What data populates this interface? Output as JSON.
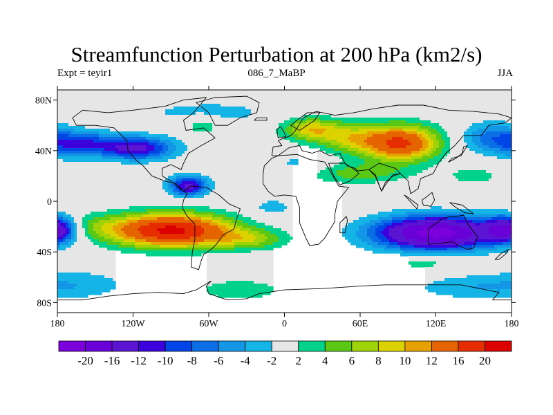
{
  "title": "Streamfunction Perturbation at 200 hPa (km2/s)",
  "subtitle_left": "Expt = teyir1",
  "subtitle_center": "086_7_MaBP",
  "subtitle_right": "JJA",
  "latitude_ticks": [
    {
      "label": "80N",
      "lat": 80
    },
    {
      "label": "40N",
      "lat": 40
    },
    {
      "label": "0",
      "lat": 0
    },
    {
      "label": "40S",
      "lat": -40
    },
    {
      "label": "80S",
      "lat": -80
    }
  ],
  "longitude_ticks": [
    {
      "label": "180",
      "lon": -180
    },
    {
      "label": "120W",
      "lon": -120
    },
    {
      "label": "60W",
      "lon": -60
    },
    {
      "label": "0",
      "lon": 0
    },
    {
      "label": "60E",
      "lon": 60
    },
    {
      "label": "120E",
      "lon": 120
    },
    {
      "label": "180",
      "lon": 180
    }
  ],
  "colorbar": {
    "colors": [
      "#7b00dc",
      "#6a00d8",
      "#5a14d2",
      "#3c00dc",
      "#0046e6",
      "#0a6ee6",
      "#1496e6",
      "#14b4e6",
      "#e6e6e6",
      "#00d28c",
      "#5ac814",
      "#a0d20a",
      "#dcd200",
      "#e6a000",
      "#e66400",
      "#e62d00",
      "#dc0000"
    ],
    "labels": [
      "-20",
      "-16",
      "-12",
      "-10",
      "-8",
      "-6",
      "-4",
      "-2",
      "2",
      "4",
      "6",
      "8",
      "10",
      "12",
      "16",
      "20"
    ]
  },
  "field": {
    "background_value": 0,
    "anomalies": [
      {
        "lon": -90,
        "lat": -23,
        "amp": 21,
        "rlon": 48,
        "rlat": 13
      },
      {
        "lon": -28,
        "lat": -30,
        "amp": 6,
        "rlon": 30,
        "rlat": 8
      },
      {
        "lon": -160,
        "lat": -20,
        "amp": 4,
        "rlon": 30,
        "rlat": 10
      },
      {
        "lon": 120,
        "lat": -25,
        "amp": -22,
        "rlon": 48,
        "rlat": 13
      },
      {
        "lon": 178,
        "lat": -22,
        "amp": -16,
        "rlon": 18,
        "rlat": 10
      },
      {
        "lon": -118,
        "lat": 42,
        "amp": -13,
        "rlon": 30,
        "rlat": 9
      },
      {
        "lon": -170,
        "lat": 44,
        "amp": -6,
        "rlon": 20,
        "rlat": 10
      },
      {
        "lon": -153,
        "lat": 47,
        "amp": -5,
        "rlon": 22,
        "rlat": 9
      },
      {
        "lon": -76,
        "lat": 12,
        "amp": -13,
        "rlon": 15,
        "rlat": 8
      },
      {
        "lon": -60,
        "lat": 70,
        "amp": -3,
        "rlon": 55,
        "rlat": 10
      },
      {
        "lon": 92,
        "lat": 46,
        "amp": 17,
        "rlon": 30,
        "rlat": 14
      },
      {
        "lon": 20,
        "lat": 57,
        "amp": 9,
        "rlon": 22,
        "rlat": 9
      },
      {
        "lon": 50,
        "lat": 50,
        "amp": 7,
        "rlon": 25,
        "rlat": 12
      },
      {
        "lon": 58,
        "lat": 22,
        "amp": 5,
        "rlon": 40,
        "rlat": 8
      },
      {
        "lon": 165,
        "lat": 50,
        "amp": -7,
        "rlon": 25,
        "rlat": 12
      },
      {
        "lon": -35,
        "lat": -70,
        "amp": 4,
        "rlon": 32,
        "rlat": 8
      },
      {
        "lon": -160,
        "lat": -65,
        "amp": -2.6,
        "rlon": 40,
        "rlat": 12
      },
      {
        "lon": 150,
        "lat": -68,
        "amp": -3.5,
        "rlon": 50,
        "rlat": 10
      },
      {
        "lon": 110,
        "lat": -48,
        "amp": 3.5,
        "rlon": 25,
        "rlat": 6
      },
      {
        "lon": -65,
        "lat": 60,
        "amp": 4,
        "rlon": 15,
        "rlat": 8
      },
      {
        "lon": 10,
        "lat": 30,
        "amp": -2.5,
        "rlon": 25,
        "rlat": 8
      },
      {
        "lon": -10,
        "lat": -5,
        "amp": -3,
        "rlon": 18,
        "rlat": 8
      },
      {
        "lon": 150,
        "lat": 20,
        "amp": 3,
        "rlon": 22,
        "rlat": 8
      }
    ]
  },
  "continents": [
    {
      "name": "north-america",
      "points": [
        [
          -168,
          66
        ],
        [
          -160,
          72
        ],
        [
          -140,
          70
        ],
        [
          -120,
          72
        ],
        [
          -95,
          75
        ],
        [
          -80,
          80
        ],
        [
          -62,
          82
        ],
        [
          -72,
          70
        ],
        [
          -80,
          64
        ],
        [
          -78,
          56
        ],
        [
          -64,
          58
        ],
        [
          -55,
          50
        ],
        [
          -66,
          44
        ],
        [
          -76,
          38
        ],
        [
          -80,
          30
        ],
        [
          -82,
          25
        ],
        [
          -90,
          29
        ],
        [
          -97,
          26
        ],
        [
          -97,
          20
        ],
        [
          -90,
          16
        ],
        [
          -83,
          10
        ],
        [
          -80,
          8
        ],
        [
          -86,
          14
        ],
        [
          -95,
          16
        ],
        [
          -105,
          20
        ],
        [
          -112,
          28
        ],
        [
          -117,
          32
        ],
        [
          -124,
          40
        ],
        [
          -125,
          48
        ],
        [
          -135,
          58
        ],
        [
          -150,
          60
        ],
        [
          -165,
          60
        ],
        [
          -168,
          66
        ]
      ]
    },
    {
      "name": "greenland",
      "points": [
        [
          -55,
          60
        ],
        [
          -45,
          60
        ],
        [
          -35,
          66
        ],
        [
          -22,
          70
        ],
        [
          -20,
          78
        ],
        [
          -30,
          83
        ],
        [
          -55,
          82
        ],
        [
          -70,
          78
        ],
        [
          -60,
          70
        ],
        [
          -55,
          60
        ]
      ]
    },
    {
      "name": "south-america",
      "points": [
        [
          -80,
          8
        ],
        [
          -74,
          12
        ],
        [
          -62,
          11
        ],
        [
          -52,
          5
        ],
        [
          -44,
          -2
        ],
        [
          -35,
          -6
        ],
        [
          -38,
          -14
        ],
        [
          -40,
          -22
        ],
        [
          -48,
          -26
        ],
        [
          -54,
          -34
        ],
        [
          -58,
          -38
        ],
        [
          -64,
          -42
        ],
        [
          -66,
          -47
        ],
        [
          -68,
          -54
        ],
        [
          -74,
          -52
        ],
        [
          -73,
          -40
        ],
        [
          -71,
          -30
        ],
        [
          -71,
          -18
        ],
        [
          -77,
          -12
        ],
        [
          -81,
          -5
        ],
        [
          -80,
          1
        ],
        [
          -77,
          6
        ],
        [
          -80,
          8
        ]
      ]
    },
    {
      "name": "eurasia",
      "points": [
        [
          -10,
          36
        ],
        [
          -9,
          43
        ],
        [
          -2,
          44
        ],
        [
          -5,
          48
        ],
        [
          5,
          52
        ],
        [
          8,
          55
        ],
        [
          10,
          58
        ],
        [
          15,
          66
        ],
        [
          25,
          71
        ],
        [
          40,
          68
        ],
        [
          55,
          70
        ],
        [
          70,
          73
        ],
        [
          90,
          76
        ],
        [
          110,
          76
        ],
        [
          130,
          72
        ],
        [
          150,
          71
        ],
        [
          170,
          69
        ],
        [
          180,
          66
        ],
        [
          175,
          62
        ],
        [
          162,
          60
        ],
        [
          156,
          52
        ],
        [
          142,
          52
        ],
        [
          135,
          44
        ],
        [
          128,
          38
        ],
        [
          122,
          30
        ],
        [
          118,
          22
        ],
        [
          108,
          18
        ],
        [
          106,
          10
        ],
        [
          100,
          6
        ],
        [
          98,
          16
        ],
        [
          92,
          22
        ],
        [
          86,
          20
        ],
        [
          80,
          15
        ],
        [
          77,
          8
        ],
        [
          72,
          20
        ],
        [
          67,
          25
        ],
        [
          58,
          24
        ],
        [
          56,
          26
        ],
        [
          50,
          28
        ],
        [
          48,
          30
        ],
        [
          44,
          38
        ],
        [
          36,
          36
        ],
        [
          28,
          40
        ],
        [
          22,
          38
        ],
        [
          14,
          40
        ],
        [
          12,
          44
        ],
        [
          6,
          43
        ],
        [
          3,
          42
        ],
        [
          -5,
          36
        ],
        [
          -10,
          36
        ]
      ]
    },
    {
      "name": "scandinavia",
      "points": [
        [
          5,
          60
        ],
        [
          10,
          64
        ],
        [
          18,
          70
        ],
        [
          28,
          70
        ],
        [
          24,
          64
        ],
        [
          18,
          60
        ],
        [
          12,
          56
        ],
        [
          5,
          60
        ]
      ]
    },
    {
      "name": "africa",
      "points": [
        [
          -17,
          21
        ],
        [
          -16,
          28
        ],
        [
          -10,
          34
        ],
        [
          -5,
          36
        ],
        [
          10,
          37
        ],
        [
          20,
          33
        ],
        [
          32,
          31
        ],
        [
          35,
          26
        ],
        [
          43,
          12
        ],
        [
          51,
          11
        ],
        [
          42,
          0
        ],
        [
          40,
          -10
        ],
        [
          40,
          -16
        ],
        [
          35,
          -24
        ],
        [
          32,
          -29
        ],
        [
          27,
          -34
        ],
        [
          20,
          -35
        ],
        [
          17,
          -29
        ],
        [
          12,
          -17
        ],
        [
          12,
          -5
        ],
        [
          9,
          4
        ],
        [
          0,
          5
        ],
        [
          -8,
          4
        ],
        [
          -13,
          8
        ],
        [
          -17,
          14
        ],
        [
          -17,
          21
        ]
      ]
    },
    {
      "name": "arabia",
      "points": [
        [
          35,
          30
        ],
        [
          48,
          30
        ],
        [
          57,
          24
        ],
        [
          59,
          22
        ],
        [
          52,
          16
        ],
        [
          44,
          13
        ],
        [
          39,
          20
        ],
        [
          35,
          30
        ]
      ]
    },
    {
      "name": "india-subcontinent",
      "points": [
        [
          67,
          25
        ],
        [
          72,
          21
        ],
        [
          77,
          8
        ],
        [
          80,
          13
        ],
        [
          86,
          21
        ],
        [
          92,
          22
        ],
        [
          88,
          26
        ],
        [
          75,
          30
        ],
        [
          67,
          25
        ]
      ]
    },
    {
      "name": "madagascar",
      "points": [
        [
          44,
          -25
        ],
        [
          48,
          -25
        ],
        [
          50,
          -15
        ],
        [
          49,
          -12
        ],
        [
          44,
          -17
        ],
        [
          44,
          -25
        ]
      ]
    },
    {
      "name": "australia",
      "points": [
        [
          114,
          -22
        ],
        [
          114,
          -34
        ],
        [
          125,
          -33
        ],
        [
          133,
          -32
        ],
        [
          138,
          -35
        ],
        [
          145,
          -38
        ],
        [
          150,
          -37
        ],
        [
          153,
          -28
        ],
        [
          146,
          -19
        ],
        [
          142,
          -11
        ],
        [
          136,
          -12
        ],
        [
          131,
          -12
        ],
        [
          125,
          -14
        ],
        [
          114,
          -22
        ]
      ]
    },
    {
      "name": "new-zealand",
      "points": [
        [
          167,
          -46
        ],
        [
          172,
          -41
        ],
        [
          178,
          -38
        ],
        [
          175,
          -42
        ],
        [
          170,
          -46
        ],
        [
          167,
          -46
        ]
      ]
    },
    {
      "name": "borneo-indonesia",
      "points": [
        [
          109,
          1
        ],
        [
          112,
          3
        ],
        [
          117,
          7
        ],
        [
          119,
          1
        ],
        [
          116,
          -4
        ],
        [
          110,
          -3
        ],
        [
          109,
          1
        ]
      ]
    },
    {
      "name": "sumatra",
      "points": [
        [
          95,
          5
        ],
        [
          105,
          -6
        ],
        [
          106,
          -3
        ],
        [
          98,
          3
        ],
        [
          95,
          5
        ]
      ]
    },
    {
      "name": "new-guinea",
      "points": [
        [
          131,
          -1
        ],
        [
          141,
          -3
        ],
        [
          150,
          -10
        ],
        [
          143,
          -9
        ],
        [
          136,
          -5
        ],
        [
          131,
          -1
        ]
      ]
    },
    {
      "name": "japan",
      "points": [
        [
          130,
          31
        ],
        [
          136,
          34
        ],
        [
          141,
          38
        ],
        [
          142,
          43
        ],
        [
          145,
          44
        ],
        [
          140,
          36
        ],
        [
          133,
          34
        ],
        [
          130,
          31
        ]
      ]
    },
    {
      "name": "british-isles",
      "points": [
        [
          -5,
          50
        ],
        [
          1,
          51
        ],
        [
          0,
          54
        ],
        [
          -3,
          59
        ],
        [
          -6,
          57
        ],
        [
          -5,
          50
        ]
      ]
    },
    {
      "name": "iceland",
      "points": [
        [
          -24,
          64
        ],
        [
          -14,
          64
        ],
        [
          -14,
          66
        ],
        [
          -22,
          66
        ],
        [
          -24,
          64
        ]
      ]
    },
    {
      "name": "antarctica",
      "points": [
        [
          -180,
          -78
        ],
        [
          -160,
          -78
        ],
        [
          -140,
          -75
        ],
        [
          -120,
          -73
        ],
        [
          -100,
          -72
        ],
        [
          -80,
          -73
        ],
        [
          -70,
          -70
        ],
        [
          -60,
          -64
        ],
        [
          -58,
          -63
        ],
        [
          -62,
          -67
        ],
        [
          -60,
          -73
        ],
        [
          -45,
          -78
        ],
        [
          -30,
          -77
        ],
        [
          -20,
          -73
        ],
        [
          0,
          -70
        ],
        [
          30,
          -69
        ],
        [
          60,
          -67
        ],
        [
          80,
          -66
        ],
        [
          100,
          -66
        ],
        [
          120,
          -66
        ],
        [
          140,
          -66
        ],
        [
          160,
          -70
        ],
        [
          170,
          -72
        ],
        [
          165,
          -78
        ],
        [
          180,
          -78
        ]
      ]
    }
  ]
}
